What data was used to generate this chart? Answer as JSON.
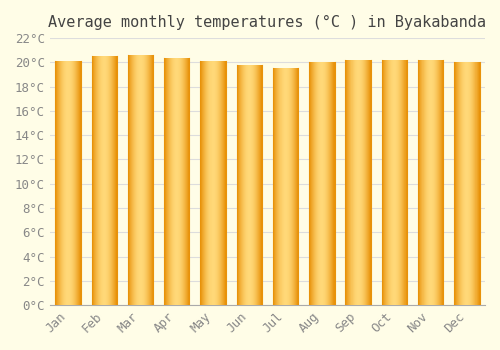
{
  "title": "Average monthly temperatures (°C ) in Byakabanda",
  "months": [
    "Jan",
    "Feb",
    "Mar",
    "Apr",
    "May",
    "Jun",
    "Jul",
    "Aug",
    "Sep",
    "Oct",
    "Nov",
    "Dec"
  ],
  "values": [
    20.1,
    20.5,
    20.6,
    20.4,
    20.1,
    19.8,
    19.5,
    20.0,
    20.2,
    20.2,
    20.2,
    20.0
  ],
  "bar_color_edge": "#E8920A",
  "bar_color_center": "#FFD878",
  "bar_color_side": "#F5A623",
  "background_color": "#FFFDE7",
  "grid_color": "#DDDDDD",
  "ylim": [
    0,
    22
  ],
  "yticks": [
    0,
    2,
    4,
    6,
    8,
    10,
    12,
    14,
    16,
    18,
    20,
    22
  ],
  "ytick_labels": [
    "0°C",
    "2°C",
    "4°C",
    "6°C",
    "8°C",
    "10°C",
    "12°C",
    "14°C",
    "16°C",
    "18°C",
    "20°C",
    "22°C"
  ],
  "title_fontsize": 11,
  "tick_fontsize": 9,
  "font_family": "monospace"
}
